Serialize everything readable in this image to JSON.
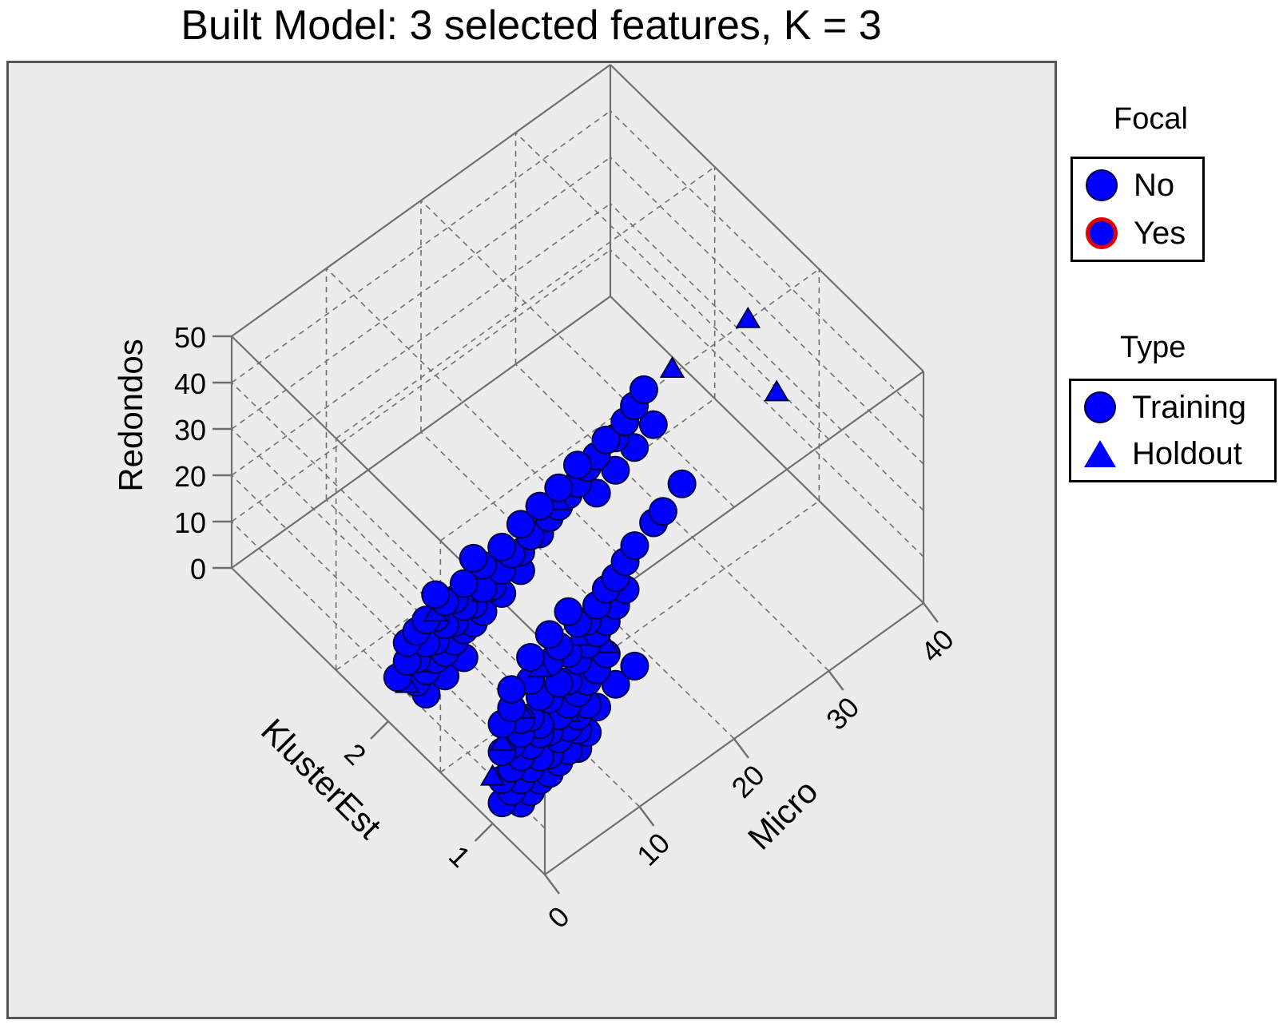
{
  "chart_data": {
    "type": "scatter",
    "title": "Built Model: 3 selected features, K = 3",
    "axes": {
      "x": {
        "label": "Micro",
        "range": [
          0,
          40
        ],
        "ticks": [
          "0",
          "10",
          "20",
          "30",
          "40"
        ]
      },
      "y": {
        "label": "KlusterEst",
        "range": [
          0.5,
          3.5
        ],
        "ticks": [
          "1",
          "2"
        ]
      },
      "z": {
        "label": "Redondos",
        "range": [
          0,
          50
        ],
        "ticks": [
          "0",
          "10",
          "20",
          "30",
          "40",
          "50"
        ]
      }
    },
    "grid": true,
    "legends": [
      {
        "title": "Focal",
        "position": "top-right",
        "entries": [
          {
            "label": "No",
            "color": "#0000ff",
            "ring": "#000040"
          },
          {
            "label": "Yes",
            "color": "#0000ff",
            "ring": "#e00000"
          }
        ]
      },
      {
        "title": "Type",
        "position": "right",
        "entries": [
          {
            "label": "Training",
            "symbol": "circle"
          },
          {
            "label": "Holdout",
            "symbol": "triangle"
          }
        ]
      }
    ],
    "colors": {
      "point_fill": "#0000ff",
      "point_stroke": "#000040",
      "panel": "#ececec",
      "grid": "#707070"
    },
    "series": [
      {
        "name": "Training",
        "symbol": "circle",
        "points": [
          [
            1,
            1,
            20
          ],
          [
            2,
            1,
            22
          ],
          [
            3,
            1,
            18
          ],
          [
            4,
            1,
            25
          ],
          [
            5,
            1,
            20
          ],
          [
            6,
            1,
            26
          ],
          [
            7,
            1,
            28
          ],
          [
            8,
            1,
            25
          ],
          [
            9,
            1,
            30
          ],
          [
            10,
            1,
            29
          ],
          [
            11,
            1,
            31
          ],
          [
            12,
            1,
            33
          ],
          [
            13,
            1,
            34
          ],
          [
            14,
            1,
            36
          ],
          [
            15,
            1,
            38
          ],
          [
            2,
            1,
            14
          ],
          [
            3,
            1,
            15
          ],
          [
            4,
            1,
            17
          ],
          [
            5,
            1,
            14
          ],
          [
            6,
            1,
            18
          ],
          [
            7,
            1,
            20
          ],
          [
            8,
            1,
            19
          ],
          [
            9,
            1,
            22
          ],
          [
            10,
            1,
            24
          ],
          [
            11,
            1,
            25
          ],
          [
            12,
            1,
            26
          ],
          [
            13,
            1,
            28
          ],
          [
            14,
            1,
            30
          ],
          [
            1,
            1,
            8
          ],
          [
            2,
            1,
            9
          ],
          [
            3,
            1,
            10
          ],
          [
            4,
            1,
            11
          ],
          [
            5,
            1,
            12
          ],
          [
            6,
            1,
            11
          ],
          [
            7,
            1,
            13
          ],
          [
            8,
            1,
            14
          ],
          [
            9,
            1,
            15
          ],
          [
            10,
            1,
            16
          ],
          [
            11,
            1,
            17
          ],
          [
            12,
            1,
            19
          ],
          [
            1,
            1,
            3
          ],
          [
            2,
            1,
            4
          ],
          [
            3,
            1,
            5
          ],
          [
            4,
            1,
            6
          ],
          [
            5,
            1,
            7
          ],
          [
            6,
            1,
            6
          ],
          [
            7,
            1,
            8
          ],
          [
            8,
            1,
            9
          ],
          [
            9,
            1,
            10
          ],
          [
            10,
            1,
            11
          ],
          [
            3,
            1,
            0
          ],
          [
            4,
            1,
            1
          ],
          [
            5,
            1,
            2
          ],
          [
            6,
            1,
            2
          ],
          [
            7,
            1,
            3
          ],
          [
            8,
            1,
            4
          ],
          [
            9,
            1,
            3
          ],
          [
            10,
            1,
            5
          ],
          [
            1,
            1,
            14
          ],
          [
            2,
            1,
            26
          ],
          [
            4,
            1,
            30
          ],
          [
            6,
            1,
            32
          ],
          [
            8,
            1,
            34
          ],
          [
            17,
            1,
            40
          ],
          [
            18,
            1,
            41
          ],
          [
            20,
            1,
            44
          ],
          [
            9,
            1,
            7
          ],
          [
            11,
            1,
            9
          ],
          [
            13,
            1,
            11
          ],
          [
            15,
            1,
            12
          ],
          [
            1,
            2,
            8
          ],
          [
            2,
            2,
            10
          ],
          [
            3,
            2,
            9
          ],
          [
            4,
            2,
            11
          ],
          [
            5,
            2,
            10
          ],
          [
            6,
            2,
            12
          ],
          [
            7,
            2,
            11
          ],
          [
            8,
            2,
            13
          ],
          [
            9,
            2,
            12
          ],
          [
            10,
            2,
            14
          ],
          [
            11,
            2,
            13
          ],
          [
            12,
            2,
            15
          ],
          [
            13,
            2,
            17
          ],
          [
            14,
            2,
            16
          ],
          [
            15,
            2,
            18
          ],
          [
            16,
            2,
            17
          ],
          [
            17,
            2,
            19
          ],
          [
            18,
            2,
            20
          ],
          [
            19,
            2,
            21
          ],
          [
            20,
            2,
            22
          ],
          [
            21,
            2,
            24
          ],
          [
            22,
            2,
            25
          ],
          [
            23,
            2,
            27
          ],
          [
            24,
            2,
            26
          ],
          [
            25,
            2,
            28
          ],
          [
            26,
            2,
            30
          ],
          [
            27,
            2,
            32
          ],
          [
            2,
            2,
            14
          ],
          [
            3,
            2,
            15
          ],
          [
            4,
            2,
            16
          ],
          [
            5,
            2,
            15
          ],
          [
            6,
            2,
            17
          ],
          [
            7,
            2,
            16
          ],
          [
            8,
            2,
            18
          ],
          [
            10,
            2,
            19
          ],
          [
            12,
            2,
            20
          ],
          [
            14,
            2,
            22
          ],
          [
            16,
            2,
            23
          ],
          [
            18,
            2,
            24
          ],
          [
            20,
            2,
            26
          ],
          [
            3,
            2,
            4
          ],
          [
            4,
            2,
            5
          ],
          [
            5,
            2,
            6
          ],
          [
            6,
            2,
            6
          ],
          [
            7,
            2,
            7
          ],
          [
            8,
            2,
            8
          ],
          [
            9,
            2,
            8
          ],
          [
            10,
            2,
            9
          ],
          [
            12,
            2,
            10
          ],
          [
            14,
            2,
            12
          ],
          [
            4,
            2,
            0
          ],
          [
            6,
            2,
            1
          ],
          [
            8,
            2,
            2
          ],
          [
            5,
            2,
            20
          ],
          [
            9,
            2,
            22
          ],
          [
            22,
            2,
            17
          ],
          [
            24,
            2,
            19
          ],
          [
            26,
            2,
            21
          ],
          [
            28,
            2,
            23
          ]
        ]
      },
      {
        "name": "Holdout",
        "symbol": "triangle",
        "points": [
          [
            0,
            1,
            10
          ],
          [
            1,
            1,
            16
          ],
          [
            3,
            1,
            20
          ],
          [
            5,
            1,
            26
          ],
          [
            9,
            1,
            27
          ],
          [
            8,
            1,
            12
          ],
          [
            12,
            1,
            21
          ],
          [
            30,
            1,
            49
          ],
          [
            3,
            2,
            8
          ],
          [
            5,
            2,
            16
          ],
          [
            10,
            2,
            13
          ],
          [
            18,
            2,
            21
          ],
          [
            2,
            2,
            5
          ],
          [
            30,
            2,
            32
          ],
          [
            38,
            2,
            31
          ]
        ]
      }
    ]
  }
}
